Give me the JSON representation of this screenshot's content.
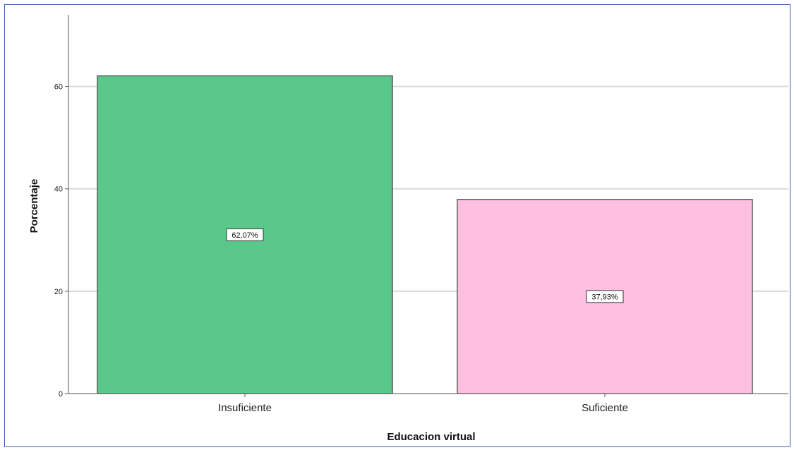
{
  "chart_data": {
    "type": "bar",
    "categories": [
      "Insuficiente",
      "Suficiente"
    ],
    "values": [
      62.07,
      37.93
    ],
    "data_labels": [
      "62,07%",
      "37,93%"
    ],
    "bar_colors": [
      "#5ac88a",
      "#fdbfe0"
    ],
    "bar_stroke": "#444444",
    "title": "",
    "xlabel": "Educacion virtual",
    "ylabel": "Porcentaje",
    "ylim": [
      0,
      74
    ],
    "yticks": [
      0,
      20,
      40,
      60
    ],
    "grid": true,
    "grid_color": "#d9d9d9",
    "frame_color": "#3f5fa6"
  }
}
